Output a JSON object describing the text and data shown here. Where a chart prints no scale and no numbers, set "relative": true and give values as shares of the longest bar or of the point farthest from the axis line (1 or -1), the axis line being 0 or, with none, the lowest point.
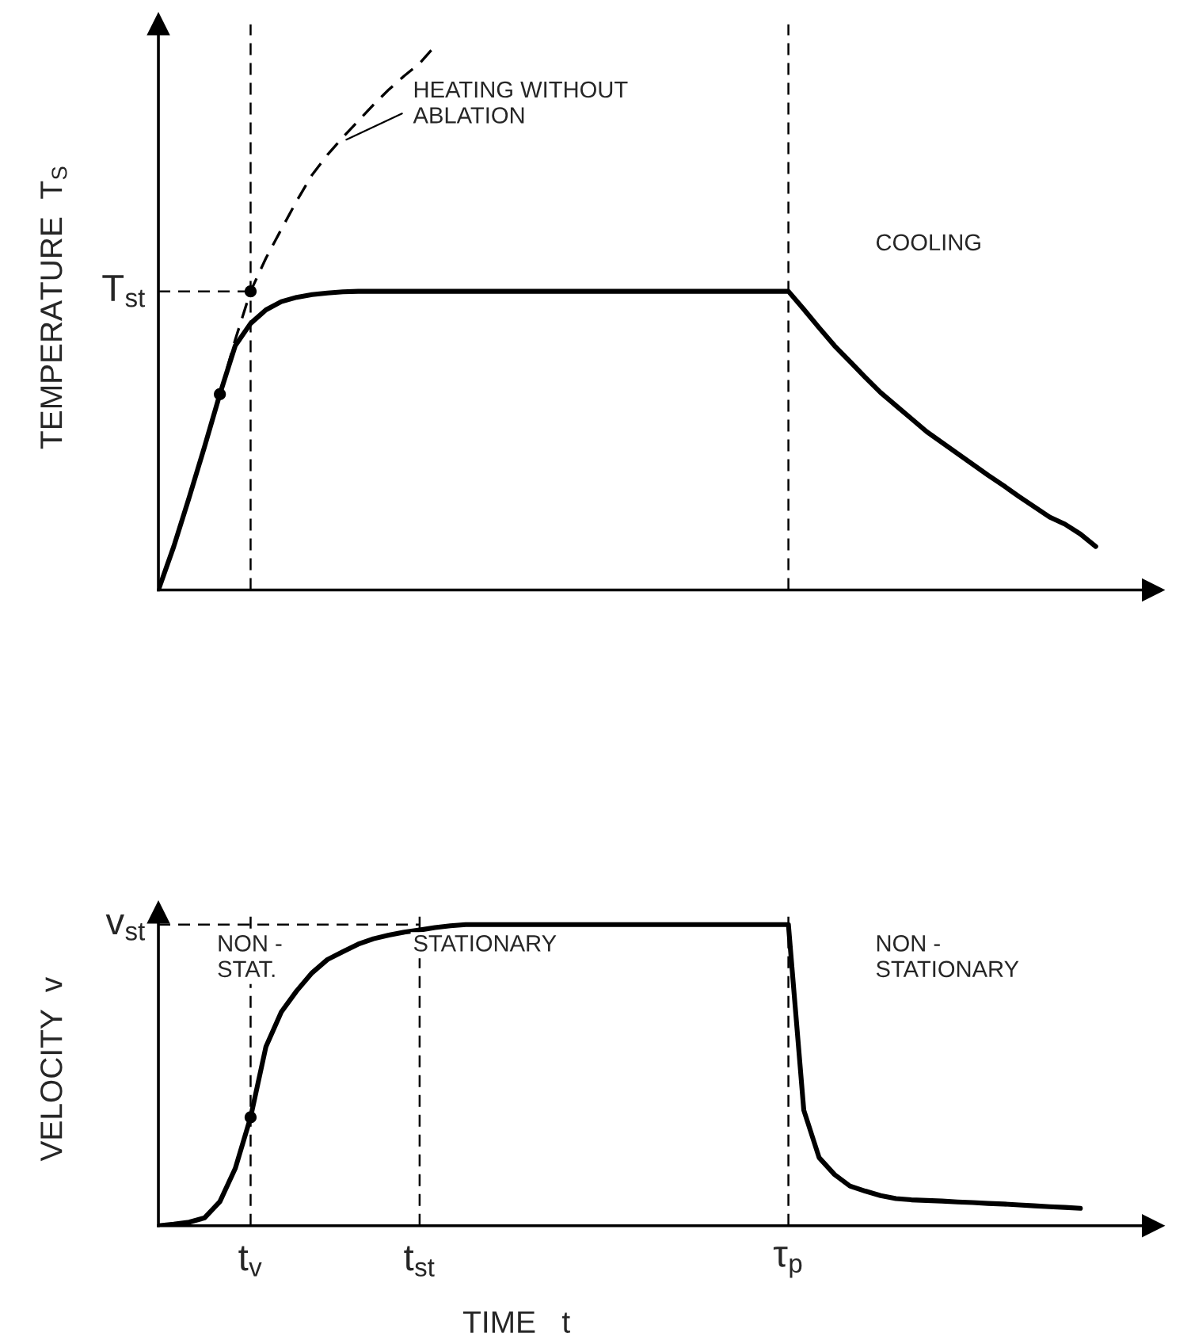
{
  "chart_data": [
    {
      "type": "line",
      "relative": true,
      "ylabel": "TEMPERATURE  T$_{S}$",
      "tick_labels": false,
      "categories": [
        null,
        null,
        null,
        null,
        null,
        null,
        "t$_{v}$",
        null,
        null,
        null,
        null,
        null,
        null,
        null,
        null,
        null,
        null,
        "t$_{st}$",
        null,
        null,
        null,
        null,
        null,
        null,
        null,
        null,
        null,
        null,
        null,
        null,
        null,
        null,
        null,
        null,
        null,
        null,
        null,
        null,
        null,
        null,
        null,
        "τ$_{p}$",
        null,
        null,
        null,
        null,
        null,
        null,
        null,
        null,
        null,
        null,
        null,
        null,
        null,
        null,
        null,
        null,
        null,
        null,
        null,
        null
      ],
      "series": [
        {
          "color": "#000000",
          "line_style": "solid",
          "values": [
            0,
            0.08,
            0.17,
            0.263,
            0.36,
            0.449,
            0.49,
            0.515,
            0.53,
            0.538,
            0.543,
            0.546,
            0.548,
            0.549,
            0.549,
            0.549,
            0.549,
            0.549,
            0.549,
            0.549,
            0.549,
            0.549,
            0.549,
            0.549,
            0.549,
            0.549,
            0.549,
            0.549,
            0.549,
            0.549,
            0.549,
            0.549,
            0.549,
            0.549,
            0.549,
            0.549,
            0.549,
            0.549,
            0.549,
            0.549,
            0.549,
            0.549,
            0.516,
            0.482,
            0.449,
            0.42,
            0.391,
            0.363,
            0.339,
            0.315,
            0.291,
            0.271,
            0.251,
            0.231,
            0.211,
            0.192,
            0.172,
            0.153,
            0.134,
            0.121,
            0.103,
            0.08
          ]
        },
        {
          "color": "#000000",
          "line_style": "dashed",
          "values": [
            null,
            null,
            null,
            null,
            0.36,
            0.46,
            0.549,
            0.61,
            0.663,
            0.715,
            0.763,
            0.8,
            0.832,
            0.862,
            0.892,
            0.92,
            0.945,
            0.968,
            1,
            null,
            null,
            null,
            null,
            null,
            null,
            null,
            null,
            null,
            null,
            null,
            null,
            null,
            null,
            null,
            null,
            null,
            null,
            null,
            null,
            null,
            null,
            null,
            null,
            null,
            null,
            null,
            null,
            null,
            null,
            null,
            null,
            null,
            null,
            null,
            null,
            null,
            null,
            null,
            null,
            null,
            null,
            null
          ]
        },
        {
          "type": "scatter",
          "marker": "circle",
          "color": "#000000",
          "values": [
            null,
            null,
            null,
            null,
            0.36,
            null,
            0.549,
            null,
            null,
            null,
            null,
            null,
            null,
            null,
            null,
            null,
            null,
            null,
            null,
            null,
            null,
            null,
            null,
            null,
            null,
            null,
            null,
            null,
            null,
            null,
            null,
            null,
            null,
            null,
            null,
            null,
            null,
            null,
            null,
            null,
            null,
            null,
            null,
            null,
            null,
            null,
            null,
            null,
            null,
            null,
            null,
            null,
            null,
            null,
            null,
            null,
            null,
            null,
            null,
            null,
            null,
            null
          ]
        }
      ],
      "ref_lines": [
        {
          "axis": "y",
          "value": 0.549,
          "label": "T$_{st}$",
          "color": "#000000"
        },
        {
          "axis": "x",
          "value": "t$_{v}$",
          "color": "#000000"
        },
        {
          "axis": "x",
          "value": "τ$_{p}$",
          "color": "#000000"
        }
      ],
      "annotations": [
        "HEATING WITHOUT\nABLATION",
        "COOLING"
      ]
    },
    {
      "type": "line",
      "relative": true,
      "ylabel": "VELOCITY  v",
      "xlabel": "TIME   t",
      "tick_labels": "x",
      "categories": [
        null,
        null,
        null,
        null,
        null,
        null,
        "t$_{v}$",
        null,
        null,
        null,
        null,
        null,
        null,
        null,
        null,
        null,
        null,
        "t$_{st}$",
        null,
        null,
        null,
        null,
        null,
        null,
        null,
        null,
        null,
        null,
        null,
        null,
        null,
        null,
        null,
        null,
        null,
        null,
        null,
        null,
        null,
        null,
        null,
        "τ$_{p}$",
        null,
        null,
        null,
        null,
        null,
        null,
        null,
        null,
        null,
        null,
        null,
        null,
        null,
        null,
        null,
        null,
        null,
        null,
        null,
        null
      ],
      "series": [
        {
          "color": "#000000",
          "line_style": "solid",
          "values": [
            0,
            0.005,
            0.012,
            0.026,
            0.08,
            0.19,
            0.36,
            0.595,
            0.71,
            0.78,
            0.84,
            0.884,
            0.91,
            0.935,
            0.953,
            0.965,
            0.975,
            0.982,
            0.99,
            0.996,
            1,
            1,
            1,
            1,
            1,
            1,
            1,
            1,
            1,
            1,
            1,
            1,
            1,
            1,
            1,
            1,
            1,
            1,
            1,
            1,
            1,
            1,
            0.384,
            0.226,
            0.17,
            0.132,
            0.115,
            0.1,
            0.09,
            0.086,
            0.084,
            0.082,
            0.079,
            0.077,
            0.074,
            0.072,
            0.069,
            0.066,
            0.063,
            0.061,
            0.058,
            null
          ]
        },
        {
          "type": "scatter",
          "marker": "circle",
          "color": "#000000",
          "values": [
            null,
            null,
            null,
            null,
            null,
            null,
            0.36,
            null,
            null,
            null,
            null,
            null,
            null,
            null,
            null,
            null,
            null,
            null,
            null,
            null,
            null,
            null,
            null,
            null,
            null,
            null,
            null,
            null,
            null,
            null,
            null,
            null,
            null,
            null,
            null,
            null,
            null,
            null,
            null,
            null,
            null,
            null,
            null,
            null,
            null,
            null,
            null,
            null,
            null,
            null,
            null,
            null,
            null,
            null,
            null,
            null,
            null,
            null,
            null,
            null,
            null,
            null
          ]
        }
      ],
      "ref_lines": [
        {
          "axis": "y",
          "value": 1,
          "label": "v$_{st}$",
          "color": "#000000"
        },
        {
          "axis": "x",
          "value": "t$_{v}$",
          "color": "#000000"
        },
        {
          "axis": "x",
          "value": "t$_{st}$",
          "color": "#000000"
        },
        {
          "axis": "x",
          "value": "τ$_{p}$",
          "color": "#000000"
        }
      ],
      "annotations": [
        "NON -\nSTAT.",
        "STATIONARY",
        "NON -\nSTATIONARY"
      ]
    }
  ]
}
